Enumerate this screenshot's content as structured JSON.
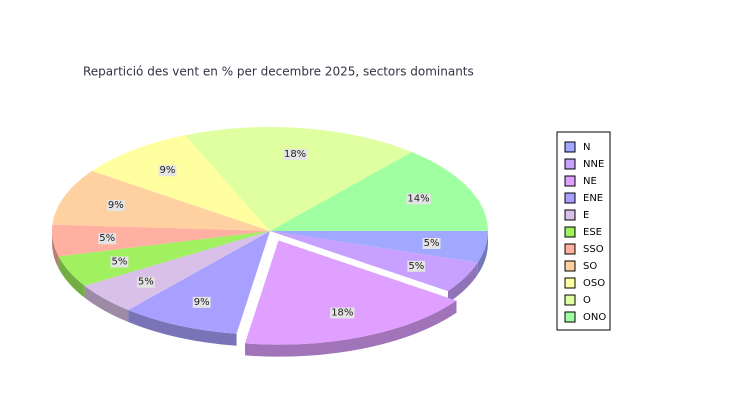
{
  "chart_data": {
    "type": "pie3d",
    "title": "Repartició des vent en % per decembre 2025, sectors dominants",
    "categories": [
      "N",
      "NNE",
      "NE",
      "ENE",
      "E",
      "ESE",
      "SSO",
      "SO",
      "OSO",
      "O",
      "ONO"
    ],
    "values": [
      5,
      5,
      18,
      9,
      5,
      5,
      5,
      9,
      9,
      18,
      14
    ],
    "value_labels": [
      "5%",
      "5%",
      "18%",
      "9%",
      "5%",
      "5%",
      "5%",
      "9%",
      "9%",
      "18%",
      "14%"
    ],
    "colors": [
      "#a0a8ff",
      "#c8a0ff",
      "#e0a0ff",
      "#a8a0ff",
      "#d8c0e8",
      "#a0f060",
      "#ffb0a0",
      "#ffd0a0",
      "#ffffa0",
      "#e0ffa0",
      "#a0ffa0"
    ],
    "legend": "right"
  }
}
